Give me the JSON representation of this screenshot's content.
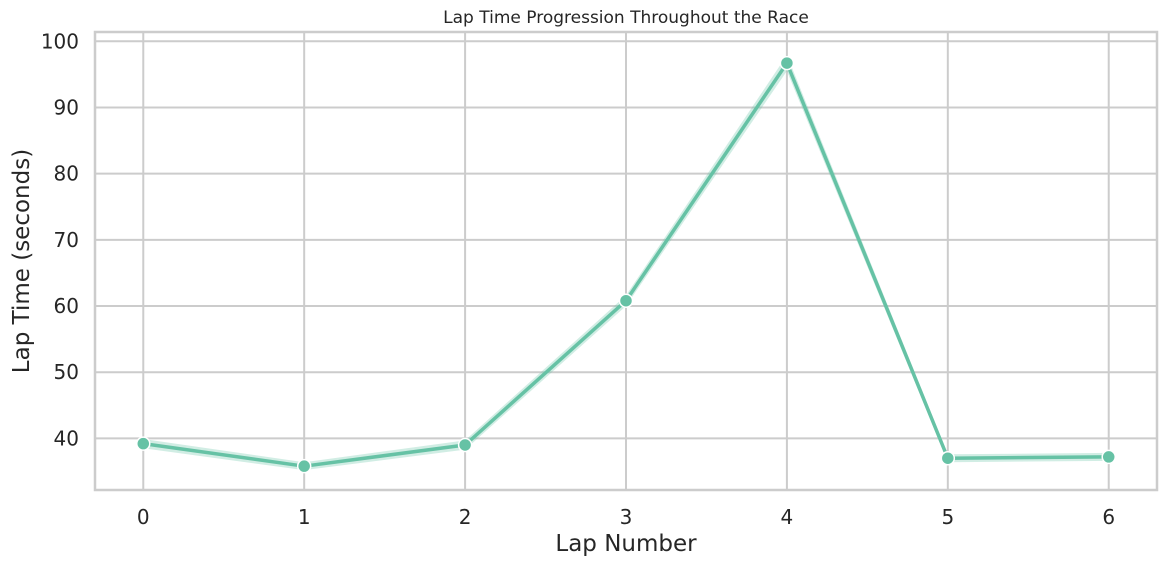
{
  "chart_data": {
    "type": "line",
    "title": "Lap Time Progression Throughout the Race",
    "xlabel": "Lap Number",
    "ylabel": "Lap Time (seconds)",
    "x": [
      0,
      1,
      2,
      3,
      4,
      5,
      6
    ],
    "xlim": [
      -0.3,
      6.3
    ],
    "ylim": [
      32.2,
      101.4
    ],
    "xticks": [
      0,
      1,
      2,
      3,
      4,
      5,
      6
    ],
    "yticks": [
      40,
      50,
      60,
      70,
      80,
      90,
      100
    ],
    "grid": true,
    "series": [
      {
        "values": [
          39.2,
          35.8,
          39.0,
          60.8,
          96.7,
          37.0,
          37.2
        ],
        "ci_low": [
          38.5,
          35.2,
          38.3,
          60.0,
          95.5,
          36.4,
          36.6
        ],
        "ci_high": [
          39.9,
          36.4,
          39.7,
          61.6,
          97.9,
          37.6,
          37.8
        ],
        "color": "#66c2a5",
        "marker": "circle"
      }
    ]
  }
}
